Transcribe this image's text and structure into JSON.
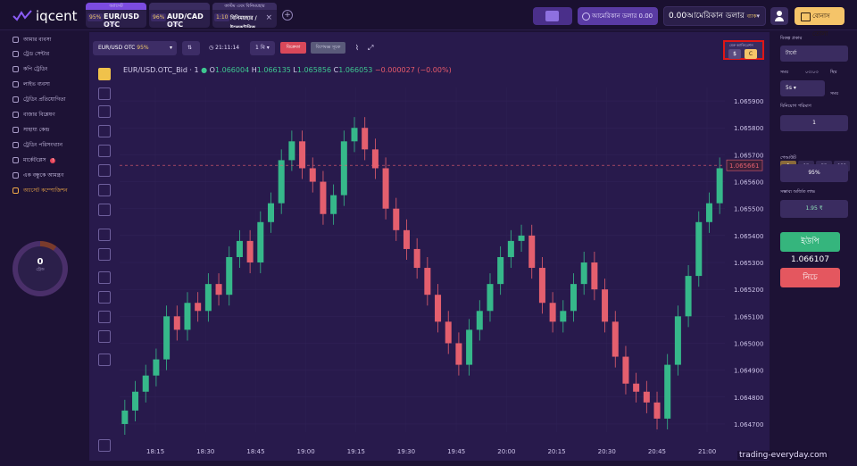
{
  "brand": {
    "name": "iqcent"
  },
  "tabs": [
    {
      "header": "অ্যাসেট",
      "pct": "95%",
      "name": "EUR/USD OTC",
      "sub": "$1.00",
      "active": true
    },
    {
      "header": "",
      "pct": "96%",
      "name": "AUD/CAD OTC",
      "sub": "$1.00",
      "active": false
    },
    {
      "header": "কাস্টম এবং বিনিময়হার",
      "pct": "1:10",
      "name": "বিনিময়হার / ইলেকট্রনিক",
      "sub": "$1.00",
      "active": false
    }
  ],
  "header": {
    "demo_label": "আমেরিকান ডলার 0.00",
    "balance_value": "0.00আমেরিকান ডলার",
    "balance_type": "ব্যাক",
    "bonus_label": "বোনাস তোলা"
  },
  "sidebar": {
    "items": [
      {
        "label": "আমার ব্যবসা"
      },
      {
        "label": "ট্রেড সেন্টার"
      },
      {
        "label": "কপি ট্রেডিং"
      },
      {
        "label": "লাইভ ব্যবসা"
      },
      {
        "label": "ট্রেডিং প্রতিযোগিতা"
      },
      {
        "label": "বাজার বিশ্লেষণ"
      },
      {
        "label": "সাহায্য কেন্দ্র"
      },
      {
        "label": "ট্রেডিং পরিসংখ্যান"
      },
      {
        "label": "মার্কেটপ্লেস",
        "badge": "!"
      },
      {
        "label": "এক বন্ধুকে আমন্ত্রণ"
      },
      {
        "label": "অ্যাসেট কম্পোজিশন"
      }
    ],
    "ring_value": "0",
    "ring_label": "ট্রেড"
  },
  "chart_toolbar": {
    "asset": "EUR/USD OTC",
    "pct": "95%",
    "time": "21:11:14",
    "timeframe": "1 মি",
    "btn_red": "বিক্রেতা",
    "btn_gray": "বিশেষজ্ঞ সূচক"
  },
  "chart_info": {
    "symbol": "EUR/USD.OTC_Bid · 1",
    "o": "1.066004",
    "h": "1.066135",
    "l": "1.065856",
    "c": "1.066053",
    "chg": "−0.000027 (−0.00%)"
  },
  "currency_selector": {
    "label": "মেরু ক্যালিব্রেশন",
    "options": [
      "$",
      "C"
    ]
  },
  "chart_data": {
    "type": "candlestick",
    "x_ticks": [
      "18:15",
      "18:30",
      "18:45",
      "19:00",
      "19:15",
      "19:30",
      "19:45",
      "20:00",
      "20:15",
      "20:30",
      "20:45",
      "21:00"
    ],
    "y_ticks": [
      "1.065900",
      "1.065800",
      "1.065700",
      "1.065600",
      "1.065500",
      "1.065400",
      "1.065300",
      "1.065200",
      "1.065100",
      "1.065000",
      "1.064900",
      "1.064800",
      "1.064700"
    ],
    "ylim": [
      1.06467,
      1.06595
    ],
    "current_price": "1.065661",
    "close": [
      1.06475,
      1.06482,
      1.06488,
      1.06494,
      1.0651,
      1.06505,
      1.06515,
      1.06512,
      1.06522,
      1.06518,
      1.06532,
      1.06538,
      1.0653,
      1.06545,
      1.06552,
      1.06568,
      1.06575,
      1.06565,
      1.0656,
      1.06548,
      1.06555,
      1.06575,
      1.0658,
      1.06572,
      1.06565,
      1.0655,
      1.06542,
      1.06535,
      1.06528,
      1.06518,
      1.06508,
      1.065,
      1.06492,
      1.06505,
      1.06512,
      1.06522,
      1.06532,
      1.06538,
      1.0654,
      1.06528,
      1.06515,
      1.06508,
      1.06512,
      1.06522,
      1.0653,
      1.0652,
      1.06508,
      1.06495,
      1.06485,
      1.06482,
      1.06478,
      1.06472,
      1.06492,
      1.0651,
      1.06525,
      1.06545,
      1.06552,
      1.06565
    ]
  },
  "right_panel": {
    "type_label": "বিকল্প প্রকার",
    "type_value": "টার্বো",
    "time_label": "সময়",
    "time_sub": "০৩:০৩",
    "time_value": "5s",
    "fix_label": "স্থির",
    "fix_opt": "সময়",
    "amount_label": "বিনিয়োগ পরিমাণ",
    "amount_value": "1",
    "multipliers": [
      "1",
      "10",
      "50",
      "100"
    ],
    "payout_label": "পেআউট",
    "payout_value": "95%",
    "profit_label": "সম্ভাব্য অর্জিত লাভ",
    "profit_value": "1.95 ₹",
    "up_label": "ইউপি",
    "price": "1.066107",
    "down_label": "নিচে"
  },
  "watermark": "trading-everyday.com"
}
